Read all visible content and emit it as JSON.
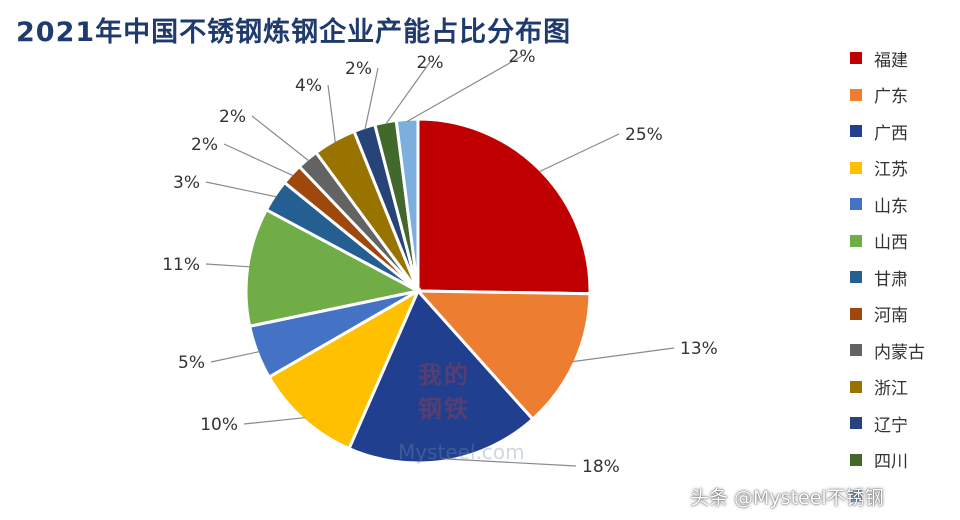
{
  "title": "2021年中国不锈钢炼钢企业产能占比分布图",
  "watermark": {
    "line1": "我的",
    "line2": "钢铁",
    "line3": "Mysteel.com"
  },
  "credit": "头条 @Mysteel不锈钢",
  "chart_data": {
    "type": "pie",
    "title": "2021年中国不锈钢炼钢企业产能占比分布图",
    "unit": "%",
    "categories": [
      "福建",
      "广东",
      "广西",
      "江苏",
      "山东",
      "山西",
      "甘肃",
      "河南",
      "内蒙古",
      "浙江",
      "辽宁",
      "四川",
      ""
    ],
    "values": [
      25,
      13,
      18,
      10,
      5,
      11,
      3,
      2,
      2,
      4,
      2,
      2,
      2
    ],
    "labels": [
      "25%",
      "13%",
      "18%",
      "10%",
      "5%",
      "11%",
      "3%",
      "2%",
      "2%",
      "4%",
      "2%",
      "2%",
      "2%"
    ],
    "colors": [
      "#c00000",
      "#ed7d31",
      "#203f8f",
      "#ffc000",
      "#4472c4",
      "#70ad47",
      "#255e91",
      "#9e480e",
      "#636363",
      "#997300",
      "#264478",
      "#43682b",
      "#7cafdd"
    ],
    "legend_position": "right"
  }
}
